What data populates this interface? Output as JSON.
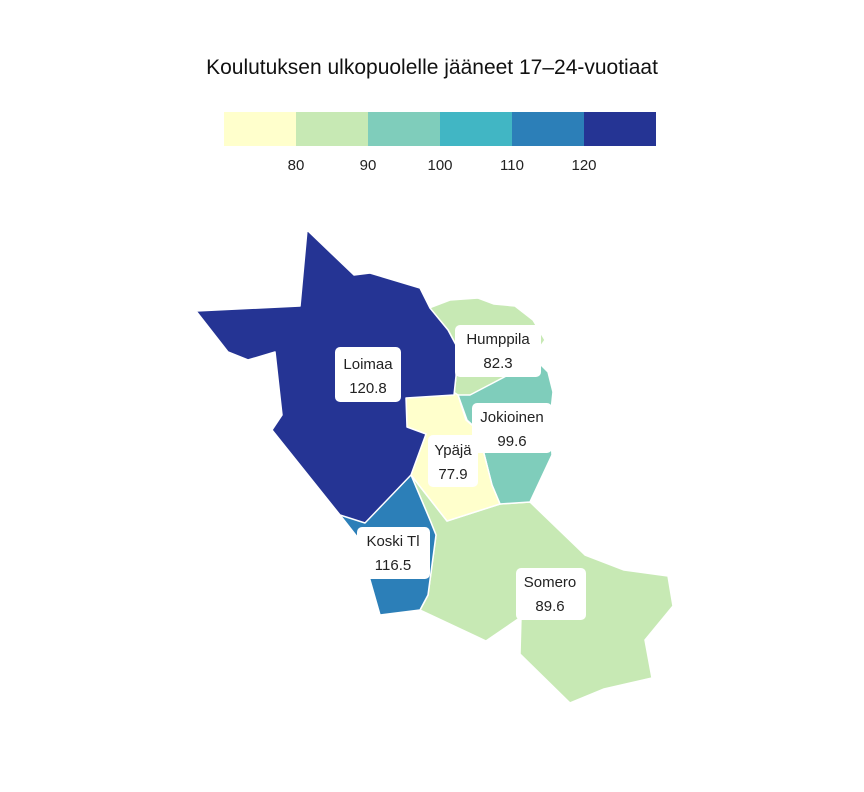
{
  "title": "Koulutuksen ulkopuolelle jääneet 17–24-vuotiaat",
  "legend": {
    "bins": [
      {
        "color": "#ffffcc"
      },
      {
        "color": "#c7e9b4"
      },
      {
        "color": "#7fcdbb"
      },
      {
        "color": "#41b6c4"
      },
      {
        "color": "#2c7fb8"
      },
      {
        "color": "#253494"
      }
    ],
    "ticks": [
      "80",
      "90",
      "100",
      "110",
      "120"
    ]
  },
  "regions": [
    {
      "name": "Loimaa",
      "value": "120.8",
      "color": "#253494"
    },
    {
      "name": "Humppila",
      "value": "82.3",
      "color": "#c7e9b4"
    },
    {
      "name": "Jokioinen",
      "value": "99.6",
      "color": "#7fcdbb"
    },
    {
      "name": "Ypäjä",
      "value": "77.9",
      "color": "#ffffcc"
    },
    {
      "name": "Koski Tl",
      "value": "116.5",
      "color": "#2c7fb8"
    },
    {
      "name": "Somero",
      "value": "89.6",
      "color": "#c7e9b4"
    }
  ]
}
